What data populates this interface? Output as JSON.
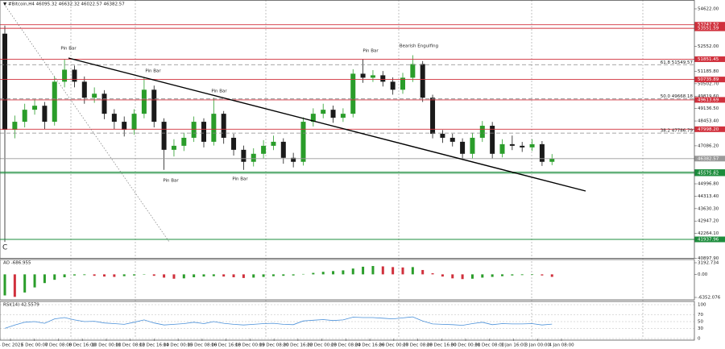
{
  "chart_data": [
    {
      "type": "candlestick",
      "title": "▼ #Bitcoin,H4  46095.32 46632.32 46022.57 46382.57",
      "open": [
        53257,
        47969,
        48409,
        49071,
        49291,
        48409,
        50613,
        51274,
        50613,
        49732,
        49952,
        48850,
        48409,
        47969,
        48850,
        50172,
        48409,
        46867,
        47087,
        47528,
        48409,
        47308,
        48850,
        47528,
        46867,
        46206,
        46647,
        47087,
        47308,
        46426,
        46206,
        48409,
        48850,
        49071,
        48630,
        48850,
        51054,
        50833,
        50966,
        50613,
        50172,
        50833,
        51583,
        49732,
        47748,
        47528,
        47308,
        46647,
        47528,
        48189,
        46647,
        47176,
        47087,
        46999,
        47176,
        46206
      ],
      "high": [
        53698,
        48750,
        49400,
        49650,
        49500,
        50900,
        51847,
        51500,
        50900,
        50300,
        50150,
        49100,
        48700,
        49100,
        50833,
        50400,
        48600,
        47450,
        47800,
        48700,
        48600,
        49732,
        49000,
        47750,
        47100,
        46950,
        47400,
        47650,
        47500,
        46700,
        48650,
        49150,
        49400,
        49300,
        49150,
        51300,
        51847,
        51250,
        51200,
        50850,
        51100,
        52070,
        51750,
        49900,
        47950,
        47750,
        47500,
        47800,
        48450,
        48400,
        47450,
        47650,
        47300,
        47450,
        47350,
        46632
      ],
      "low": [
        41799,
        47500,
        48100,
        48800,
        48000,
        48200,
        50300,
        50300,
        49400,
        49450,
        48550,
        48000,
        47600,
        47700,
        48600,
        48100,
        45765,
        46500,
        46800,
        47300,
        47000,
        47100,
        47200,
        46550,
        45765,
        45950,
        46400,
        46850,
        46100,
        45900,
        46000,
        48150,
        48600,
        48350,
        48400,
        48650,
        50550,
        50600,
        50350,
        49900,
        49950,
        50600,
        49500,
        47500,
        47250,
        47050,
        46350,
        46400,
        47300,
        46400,
        46450,
        46850,
        46750,
        46800,
        45980,
        46022
      ],
      "close": [
        47969,
        48409,
        49071,
        49291,
        48409,
        50613,
        51274,
        50613,
        49732,
        49952,
        48850,
        48409,
        47969,
        48850,
        50172,
        48409,
        46867,
        47087,
        47528,
        48409,
        47308,
        48850,
        47528,
        46867,
        46206,
        46647,
        47087,
        47308,
        46426,
        46206,
        48409,
        48850,
        49071,
        48630,
        48850,
        51054,
        50833,
        50966,
        50613,
        50172,
        50833,
        51583,
        49732,
        47748,
        47528,
        47308,
        46647,
        47528,
        48189,
        46647,
        47176,
        47087,
        46999,
        47176,
        46206,
        46382
      ],
      "up_color": "#2a9d2a",
      "down_color": "#1a1a1a",
      "ylim": [
        40918,
        55020
      ],
      "yticks": [
        {
          "value": 54622.0,
          "label": "54622.00"
        },
        {
          "value": 52552.0,
          "label": "52552.00"
        },
        {
          "value": 51185.8,
          "label": "51185.80"
        },
        {
          "value": 50502.7,
          "label": "50502.70"
        },
        {
          "value": 49819.6,
          "label": "49819.60"
        },
        {
          "value": 49136.5,
          "label": "49136.50"
        },
        {
          "value": 48453.4,
          "label": "48453.40"
        },
        {
          "value": 47086.2,
          "label": "47086.20"
        },
        {
          "value": 44996.8,
          "label": "44996.80"
        },
        {
          "value": 44313.4,
          "label": "44313.40"
        },
        {
          "value": 43630.3,
          "label": "43630.30"
        },
        {
          "value": 42947.2,
          "label": "42947.20"
        },
        {
          "value": 42264.1,
          "label": "42264.10"
        },
        {
          "value": 40897.9,
          "label": "40897.90"
        }
      ],
      "levels": [
        {
          "value": 53747.52,
          "label": "53747.52",
          "color": "#d0303c",
          "style": "solid"
        },
        {
          "value": 53551.59,
          "label": "53551.59",
          "color": "#d0303c",
          "style": "solid"
        },
        {
          "value": 51851.45,
          "label": "51851.45",
          "color": "#d0303c",
          "style": "solid"
        },
        {
          "value": 50735.89,
          "label": "50735.89",
          "color": "#d0303c",
          "style": "solid"
        },
        {
          "value": 49613.69,
          "label": "49613.69",
          "color": "#d0303c",
          "style": "solid"
        },
        {
          "value": 47998.2,
          "label": "47998.20",
          "color": "#d0303c",
          "style": "solid"
        },
        {
          "value": 46382.57,
          "label": "46382.57",
          "color": "#9a9a9a",
          "style": "solid"
        },
        {
          "value": 45638.62,
          "label": "45638.62",
          "color": "#1c8c3c",
          "style": "solid"
        },
        {
          "value": 45575.82,
          "label": "45575.82",
          "color": "#1c8c3c",
          "style": "solid"
        },
        {
          "value": 41937.96,
          "label": "41937.96",
          "color": "#1c8c3c",
          "style": "solid"
        },
        {
          "value": 51549.57,
          "label": "61.8 51549.57",
          "color": "#888888",
          "style": "dash"
        },
        {
          "value": 49668.18,
          "label": "50.0 49668.18",
          "color": "#888888",
          "style": "dash"
        },
        {
          "value": 47786.79,
          "label": "38.2 47786.79",
          "color": "#888888",
          "style": "dash"
        }
      ],
      "annotations": [
        "Pin Bar",
        "Pin Bar",
        "Pin Bar",
        "Pin Bar",
        "Pin Bar",
        "Pin Bar",
        "Bearish Engulfing"
      ],
      "wave_label": "C",
      "x_labels": [
        "4 Dec 2021",
        "6 Dec 00:00",
        "7 Dec 08:00",
        "8 Dec 16:00",
        "10 Dec 00:00",
        "11 Dec 08:00",
        "12 Dec 16:00",
        "14 Dec 00:00",
        "15 Dec 08:00",
        "16 Dec 16:00",
        "18 Dec 00:00",
        "19 Dec 08:00",
        "20 Dec 16:00",
        "22 Dec 00:00",
        "23 Dec 08:00",
        "24 Dec 16:00",
        "26 Dec 00:00",
        "27 Dec 08:00",
        "28 Dec 16:00",
        "30 Dec 00:00",
        "31 Dec 08:00",
        "1 Jan 16:00",
        "3 Jan 00:00",
        "4 Jan 08:00"
      ]
    },
    {
      "type": "oscillator",
      "title": "AO -686.955",
      "values": [
        -5800,
        -6200,
        -5000,
        -3600,
        -2400,
        -1500,
        -800,
        -300,
        -200,
        -400,
        -600,
        -700,
        -500,
        -300,
        -100,
        -400,
        -900,
        -1200,
        -1100,
        -800,
        -600,
        -500,
        -600,
        -800,
        -1000,
        -900,
        -700,
        -500,
        -400,
        -300,
        100,
        400,
        700,
        900,
        1100,
        1600,
        2100,
        2300,
        2200,
        2000,
        1900,
        2000,
        1200,
        300,
        -600,
        -1100,
        -1300,
        -1200,
        -900,
        -700,
        -500,
        -300,
        -200,
        -150,
        -300,
        -686.955
      ],
      "up_color": "#2a9d2a",
      "down_color": "#d0303c",
      "ylim": [
        -6352.076,
        3192.734
      ],
      "yticks": [
        {
          "value": 3192.734,
          "label": "3192.734"
        },
        {
          "value": 0,
          "label": "0.00"
        },
        {
          "value": -6352.076,
          "label": "-6352.076"
        }
      ]
    },
    {
      "type": "line",
      "title": "RSI(14) 42.5579",
      "values": [
        30,
        40,
        48,
        50,
        45,
        58,
        62,
        55,
        50,
        51,
        46,
        44,
        42,
        48,
        55,
        46,
        40,
        42,
        44,
        48,
        44,
        50,
        45,
        42,
        40,
        42,
        44,
        45,
        42,
        41,
        52,
        54,
        56,
        53,
        55,
        63,
        62,
        62,
        60,
        58,
        61,
        64,
        52,
        43,
        42,
        41,
        39,
        44,
        48,
        41,
        44,
        43,
        43,
        44,
        40,
        42.5579
      ],
      "color": "#4a90d9",
      "ylim": [
        0,
        100
      ],
      "yticks": [
        100,
        70,
        50,
        30,
        0
      ]
    }
  ]
}
